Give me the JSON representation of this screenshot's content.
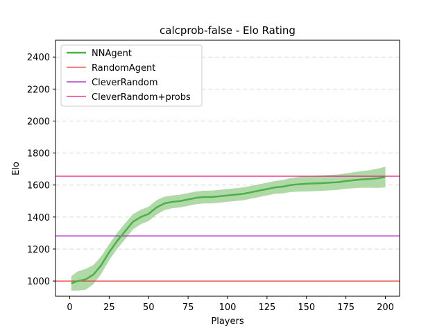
{
  "chart_data": {
    "type": "line",
    "title": "calcprob-false - Elo Rating",
    "xlabel": "Players",
    "ylabel": "Elo",
    "xlim": [
      -9,
      209
    ],
    "ylim": [
      905,
      2505
    ],
    "xticks": [
      0,
      25,
      50,
      75,
      100,
      125,
      150,
      175,
      200
    ],
    "yticks": [
      1000,
      1200,
      1400,
      1600,
      1800,
      2000,
      2200,
      2400
    ],
    "grid": "y-dashed",
    "legend_position": "upper left",
    "series": [
      {
        "name": "NNAgent",
        "color": "#4daf4a",
        "band_color": "#a6d69d",
        "x": [
          1,
          5,
          10,
          15,
          20,
          25,
          30,
          35,
          40,
          45,
          50,
          55,
          60,
          65,
          70,
          75,
          80,
          85,
          90,
          95,
          100,
          105,
          110,
          115,
          120,
          125,
          130,
          135,
          140,
          145,
          150,
          155,
          160,
          165,
          170,
          175,
          180,
          185,
          190,
          195,
          200
        ],
        "y": [
          985,
          1000,
          1010,
          1040,
          1100,
          1180,
          1250,
          1310,
          1370,
          1400,
          1420,
          1460,
          1485,
          1495,
          1500,
          1510,
          1520,
          1525,
          1525,
          1530,
          1535,
          1540,
          1545,
          1555,
          1565,
          1575,
          1585,
          1590,
          1600,
          1605,
          1608,
          1610,
          1612,
          1615,
          1618,
          1625,
          1630,
          1635,
          1638,
          1642,
          1650
        ],
        "band": [
          45,
          60,
          65,
          60,
          55,
          50,
          50,
          50,
          48,
          45,
          45,
          45,
          42,
          40,
          40,
          40,
          40,
          40,
          40,
          40,
          40,
          40,
          40,
          40,
          40,
          40,
          40,
          42,
          44,
          46,
          48,
          48,
          48,
          48,
          48,
          48,
          50,
          52,
          55,
          60,
          65
        ]
      },
      {
        "name": "RandomAgent",
        "color": "#e8392f",
        "hline": 1000
      },
      {
        "name": "CleverRandom",
        "color": "#a516c4",
        "hline": 1282
      },
      {
        "name": "CleverRandom+probs",
        "color": "#e3167f",
        "hline": 1655
      }
    ]
  }
}
